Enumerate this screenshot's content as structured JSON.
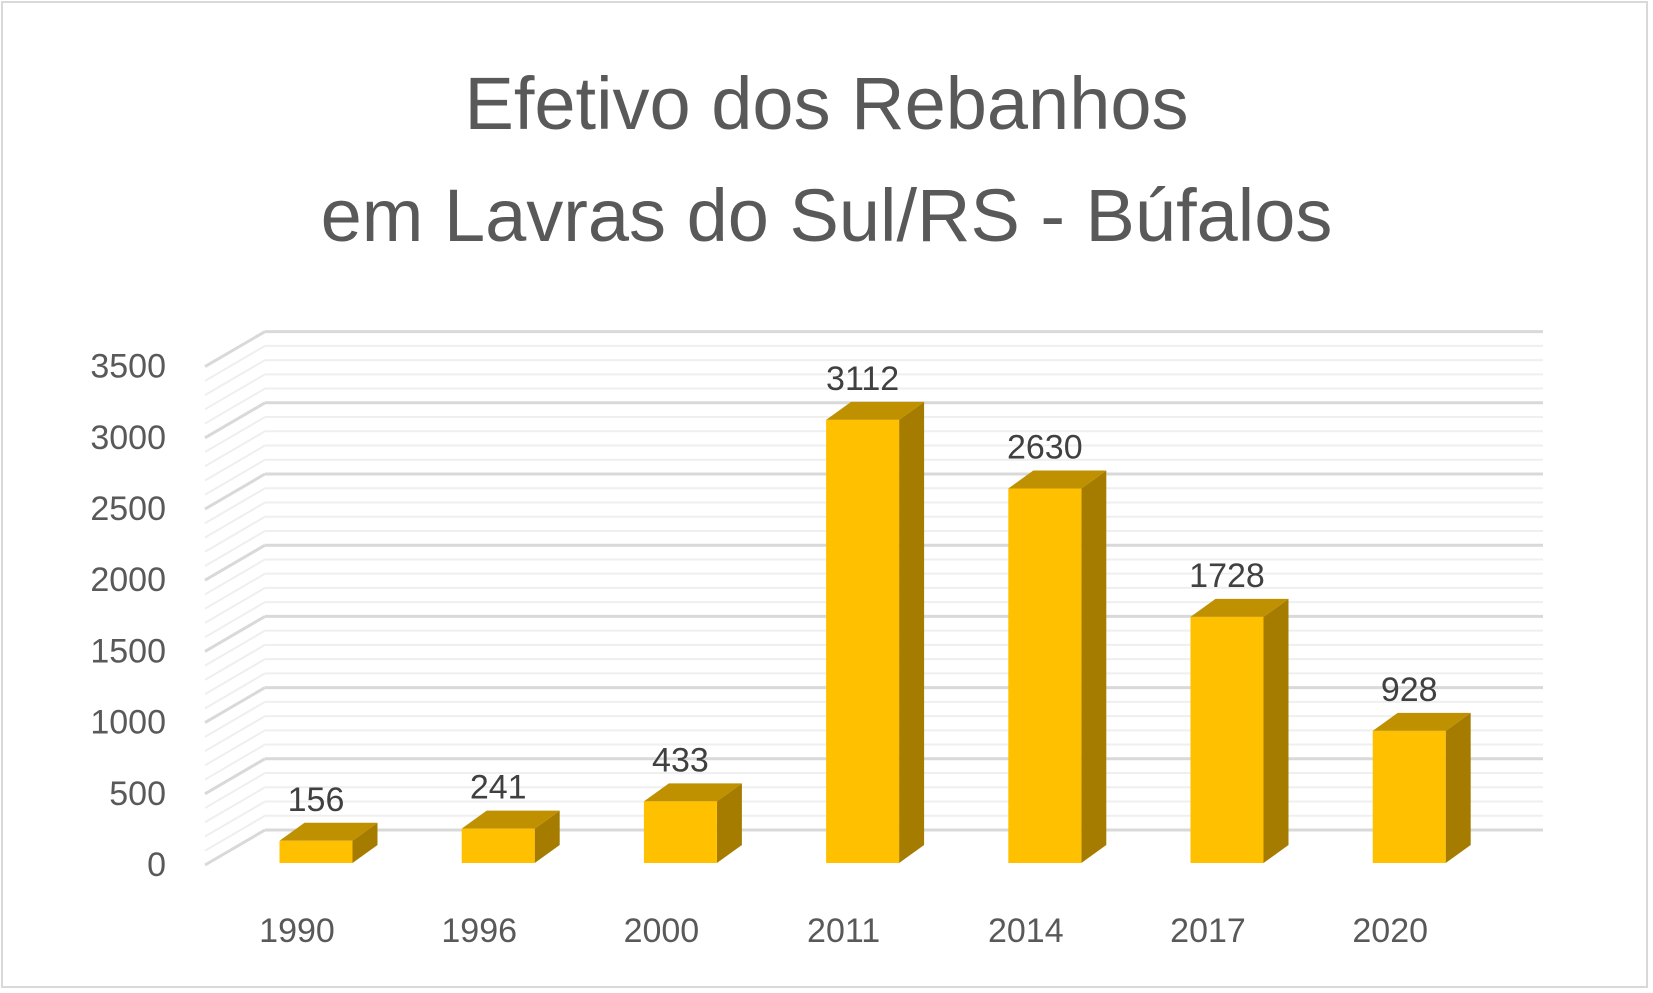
{
  "chart_data": {
    "type": "bar",
    "title_lines": [
      "Efetivo dos Rebanhos",
      "em Lavras do Sul/RS - Búfalos"
    ],
    "categories": [
      "1990",
      "1996",
      "2000",
      "2011",
      "2014",
      "2017",
      "2020"
    ],
    "values": [
      156,
      241,
      433,
      3112,
      2630,
      1728,
      928
    ],
    "y_ticks": [
      "0",
      "500",
      "1000",
      "1500",
      "2000",
      "2500",
      "3000",
      "3500"
    ],
    "ylim": [
      0,
      3500
    ],
    "grid": true,
    "legend": "none",
    "colors": {
      "bar_front": "#FFC000",
      "bar_top": "#BF9000",
      "bar_side": "#A67C00",
      "grid_major": "#D9D9D9",
      "grid_minor": "#EFEFEF",
      "label_text": "#404040",
      "axis_text": "#595959"
    }
  }
}
